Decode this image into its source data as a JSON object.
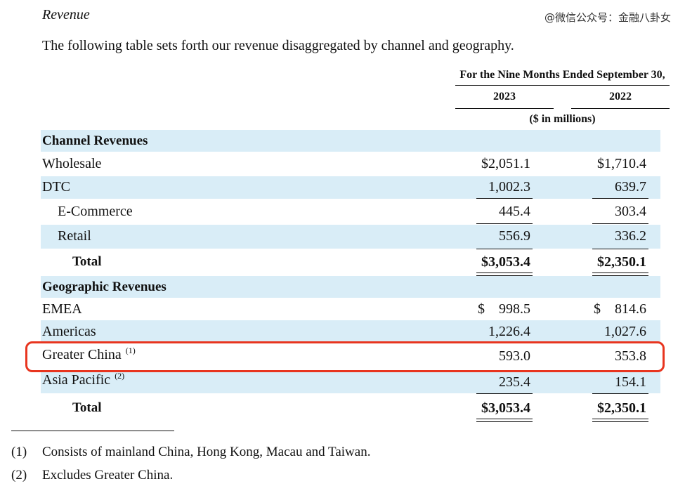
{
  "section_title": "Revenue",
  "watermark": "@微信公众号：金融八卦女",
  "intro": "The following table sets forth our revenue disaggregated by channel and geography.",
  "header": {
    "period": "For the Nine Months Ended September 30,",
    "year_a": "2023",
    "year_b": "2022",
    "units": "($ in millions)"
  },
  "channel": {
    "title": "Channel Revenues",
    "wholesale": {
      "label": "Wholesale",
      "a": "$2,051.1",
      "b": "$1,710.4"
    },
    "dtc": {
      "label": "DTC",
      "a": "1,002.3",
      "b": "639.7"
    },
    "ecommerce": {
      "label": "E-Commerce",
      "a": "445.4",
      "b": "303.4"
    },
    "retail": {
      "label": "Retail",
      "a": "556.9",
      "b": "336.2"
    },
    "total": {
      "label": "Total",
      "a": "$3,053.4",
      "b": "$2,350.1"
    }
  },
  "geo": {
    "title": "Geographic Revenues",
    "emea": {
      "label": "EMEA",
      "a_sym": "$",
      "a": "998.5",
      "b_sym": "$",
      "b": "814.6"
    },
    "americas": {
      "label": "Americas",
      "a": "1,226.4",
      "b": "1,027.6"
    },
    "china": {
      "label": "Greater China",
      "note": "(1)",
      "a": "593.0",
      "b": "353.8"
    },
    "apac": {
      "label": "Asia Pacific",
      "note": "(2)",
      "a": "235.4",
      "b": "154.1"
    },
    "total": {
      "label": "Total",
      "a": "$3,053.4",
      "b": "$2,350.1"
    }
  },
  "footnotes": {
    "n1_mark": "(1)",
    "n1_text": "Consists of mainland China, Hong Kong, Macau and Taiwan.",
    "n2_mark": "(2)",
    "n2_text": "Excludes Greater China."
  },
  "colors": {
    "band": "#d9edf7",
    "highlight": "#e8351f"
  }
}
